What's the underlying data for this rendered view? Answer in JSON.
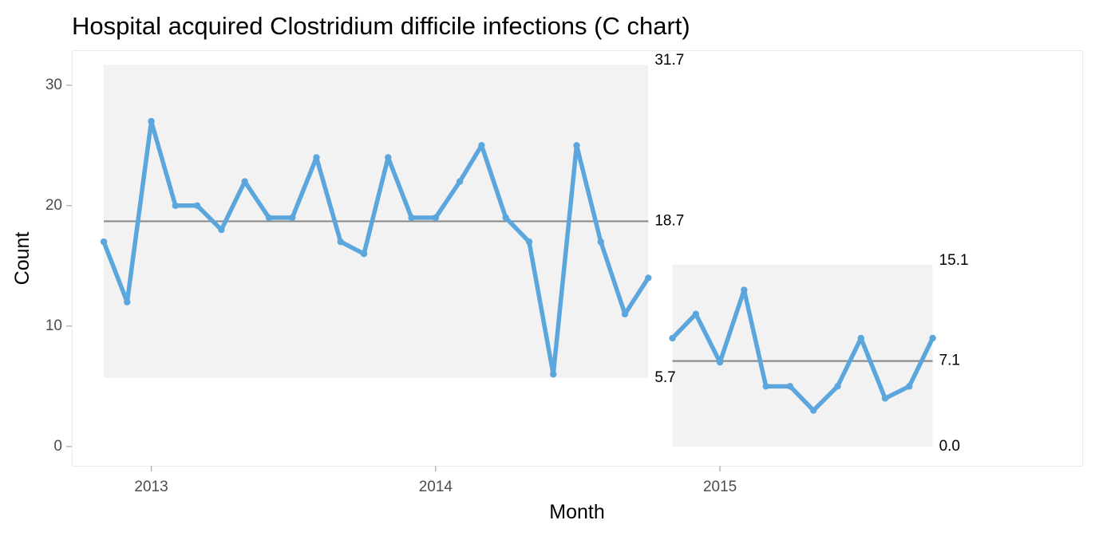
{
  "chart_data": {
    "type": "line",
    "title": "Hospital acquired Clostridium difficile infections (C chart)",
    "xlabel": "Month",
    "ylabel": "Count",
    "ylim": [
      -1.6,
      32.9
    ],
    "yticks": [
      0,
      10,
      20,
      30
    ],
    "xlim": [
      "2012-09-21",
      "2016-04-10"
    ],
    "xticks": [
      {
        "date": "2013-01-01",
        "label": "2013"
      },
      {
        "date": "2014-01-01",
        "label": "2014"
      },
      {
        "date": "2015-01-01",
        "label": "2015"
      }
    ],
    "grid": false,
    "line_color": "#5ba6dc",
    "center_line_color": "#8c8c8c",
    "band_color": "#f2f2f2",
    "panel_border_color": "#ebebeb",
    "tick_color": "#a6a6a6",
    "series": [
      {
        "values": [
          {
            "x": "2012-11-01",
            "y": 17
          },
          {
            "x": "2012-12-01",
            "y": 12
          },
          {
            "x": "2013-01-01",
            "y": 27
          },
          {
            "x": "2013-02-01",
            "y": 20
          },
          {
            "x": "2013-03-01",
            "y": 20
          },
          {
            "x": "2013-04-01",
            "y": 18
          },
          {
            "x": "2013-05-01",
            "y": 22
          },
          {
            "x": "2013-06-01",
            "y": 19
          },
          {
            "x": "2013-07-01",
            "y": 19
          },
          {
            "x": "2013-08-01",
            "y": 24
          },
          {
            "x": "2013-09-01",
            "y": 17
          },
          {
            "x": "2013-10-01",
            "y": 16
          },
          {
            "x": "2013-11-01",
            "y": 24
          },
          {
            "x": "2013-12-01",
            "y": 19
          },
          {
            "x": "2014-01-01",
            "y": 19
          },
          {
            "x": "2014-02-01",
            "y": 22
          },
          {
            "x": "2014-03-01",
            "y": 25
          },
          {
            "x": "2014-04-01",
            "y": 19
          },
          {
            "x": "2014-05-01",
            "y": 17
          },
          {
            "x": "2014-06-01",
            "y": 6
          },
          {
            "x": "2014-07-01",
            "y": 25
          },
          {
            "x": "2014-08-01",
            "y": 17
          },
          {
            "x": "2014-09-01",
            "y": 11
          },
          {
            "x": "2014-10-01",
            "y": 14
          },
          {
            "x": "2014-11-01",
            "y": 9
          },
          {
            "x": "2014-12-01",
            "y": 11
          },
          {
            "x": "2015-01-01",
            "y": 7
          },
          {
            "x": "2015-02-01",
            "y": 13
          },
          {
            "x": "2015-03-01",
            "y": 5
          },
          {
            "x": "2015-04-01",
            "y": 5
          },
          {
            "x": "2015-05-01",
            "y": 3
          },
          {
            "x": "2015-06-01",
            "y": 5
          },
          {
            "x": "2015-07-01",
            "y": 9
          },
          {
            "x": "2015-08-01",
            "y": 4
          },
          {
            "x": "2015-09-01",
            "y": 5
          },
          {
            "x": "2015-10-01",
            "y": 9
          }
        ]
      }
    ],
    "phases": [
      {
        "start": "2012-11-01",
        "end": "2014-10-01",
        "center": 18.7,
        "lower": 5.7,
        "upper": 31.7,
        "center_label": "18.7",
        "lower_label": "5.7",
        "upper_label": "31.7"
      },
      {
        "start": "2014-11-01",
        "end": "2015-10-01",
        "center": 7.1,
        "lower": 0.0,
        "upper": 15.1,
        "center_label": "7.1",
        "lower_label": "0.0",
        "upper_label": "15.1"
      }
    ]
  }
}
